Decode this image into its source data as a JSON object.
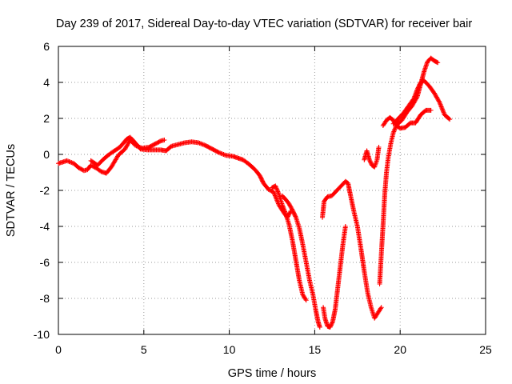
{
  "chart_data": {
    "type": "scatter",
    "title": "Day 239 of 2017, Sidereal Day-to-day VTEC variation (SDTVAR) for receiver bair",
    "xlabel": "GPS time / hours",
    "ylabel": "SDTVAR / TECUs",
    "xlim": [
      0,
      25
    ],
    "ylim": [
      -10,
      6
    ],
    "xticks": [
      "0",
      "5",
      "10",
      "15",
      "20",
      "25"
    ],
    "yticks": [
      "-10",
      "-8",
      "-6",
      "-4",
      "-2",
      "0",
      "2",
      "4",
      "6"
    ],
    "grid": true,
    "legend": "none",
    "marker": "plus",
    "color": "#ff0000",
    "segments": [
      [
        [
          0.0,
          -0.5
        ],
        [
          0.5,
          -0.35
        ],
        [
          0.9,
          -0.5
        ],
        [
          1.2,
          -0.75
        ],
        [
          1.5,
          -0.9
        ],
        [
          1.7,
          -0.85
        ],
        [
          1.9,
          -0.6
        ],
        [
          2.2,
          -0.75
        ],
        [
          2.5,
          -0.95
        ],
        [
          2.8,
          -1.05
        ],
        [
          3.1,
          -0.7
        ],
        [
          3.5,
          -0.05
        ],
        [
          3.9,
          0.3
        ],
        [
          4.2,
          0.8
        ],
        [
          4.5,
          0.5
        ],
        [
          4.9,
          0.35
        ],
        [
          5.3,
          0.4
        ],
        [
          5.7,
          0.6
        ],
        [
          6.0,
          0.75
        ],
        [
          6.2,
          0.8
        ]
      ],
      [
        [
          1.9,
          -0.35
        ],
        [
          2.3,
          -0.6
        ],
        [
          2.6,
          -0.3
        ],
        [
          2.9,
          -0.05
        ],
        [
          3.2,
          0.15
        ],
        [
          3.6,
          0.4
        ],
        [
          4.0,
          0.85
        ],
        [
          4.2,
          0.95
        ],
        [
          4.4,
          0.75
        ],
        [
          4.8,
          0.3
        ],
        [
          5.2,
          0.25
        ],
        [
          5.6,
          0.25
        ],
        [
          6.0,
          0.25
        ],
        [
          6.3,
          0.2
        ],
        [
          6.6,
          0.45
        ],
        [
          7.0,
          0.55
        ],
        [
          7.4,
          0.65
        ],
        [
          7.8,
          0.7
        ],
        [
          8.2,
          0.65
        ],
        [
          8.6,
          0.5
        ],
        [
          9.0,
          0.3
        ],
        [
          9.4,
          0.1
        ],
        [
          9.8,
          -0.05
        ],
        [
          10.2,
          -0.1
        ],
        [
          10.5,
          -0.2
        ],
        [
          10.8,
          -0.3
        ],
        [
          11.1,
          -0.5
        ],
        [
          11.4,
          -0.75
        ],
        [
          11.6,
          -0.95
        ],
        [
          11.8,
          -1.2
        ],
        [
          12.0,
          -1.6
        ],
        [
          12.3,
          -1.95
        ],
        [
          12.6,
          -2.1
        ],
        [
          12.9,
          -2.8
        ],
        [
          13.2,
          -3.25
        ],
        [
          13.4,
          -3.5
        ],
        [
          13.6,
          -3.15
        ]
      ],
      [
        [
          12.5,
          -1.85
        ],
        [
          12.7,
          -1.75
        ],
        [
          12.9,
          -2.2
        ],
        [
          13.1,
          -2.8
        ],
        [
          13.3,
          -3.3
        ],
        [
          13.5,
          -3.9
        ],
        [
          13.7,
          -4.8
        ],
        [
          13.9,
          -5.9
        ],
        [
          14.1,
          -7.0
        ],
        [
          14.3,
          -7.8
        ],
        [
          14.5,
          -8.1
        ]
      ],
      [
        [
          13.1,
          -2.3
        ],
        [
          13.3,
          -2.5
        ],
        [
          13.5,
          -2.75
        ],
        [
          13.7,
          -3.1
        ],
        [
          13.9,
          -3.5
        ],
        [
          14.1,
          -4.1
        ],
        [
          14.3,
          -5.0
        ],
        [
          14.5,
          -6.0
        ],
        [
          14.7,
          -7.0
        ],
        [
          14.9,
          -7.8
        ],
        [
          15.05,
          -8.6
        ],
        [
          15.2,
          -9.3
        ],
        [
          15.3,
          -9.6
        ]
      ],
      [
        [
          15.5,
          -8.5
        ],
        [
          15.6,
          -9.1
        ],
        [
          15.75,
          -9.55
        ],
        [
          15.9,
          -9.6
        ],
        [
          16.05,
          -9.3
        ],
        [
          16.2,
          -8.6
        ],
        [
          16.35,
          -7.4
        ],
        [
          16.5,
          -6.2
        ],
        [
          16.65,
          -5.0
        ],
        [
          16.8,
          -4.0
        ]
      ],
      [
        [
          15.45,
          -3.5
        ],
        [
          15.55,
          -2.6
        ],
        [
          15.75,
          -2.35
        ],
        [
          16.0,
          -2.3
        ],
        [
          16.3,
          -2.0
        ],
        [
          16.6,
          -1.7
        ],
        [
          16.8,
          -1.5
        ],
        [
          16.95,
          -1.6
        ],
        [
          17.1,
          -2.3
        ],
        [
          17.3,
          -3.2
        ],
        [
          17.5,
          -4.0
        ],
        [
          17.7,
          -5.2
        ],
        [
          17.9,
          -6.5
        ],
        [
          18.1,
          -7.7
        ],
        [
          18.3,
          -8.5
        ],
        [
          18.5,
          -9.1
        ],
        [
          18.7,
          -8.8
        ],
        [
          18.9,
          -8.5
        ]
      ],
      [
        [
          17.9,
          -0.3
        ],
        [
          18.05,
          0.2
        ],
        [
          18.2,
          -0.3
        ],
        [
          18.35,
          -0.6
        ],
        [
          18.5,
          -0.7
        ],
        [
          18.65,
          -0.3
        ],
        [
          18.75,
          0.4
        ]
      ],
      [
        [
          18.8,
          -7.2
        ],
        [
          18.9,
          -5.5
        ],
        [
          19.0,
          -3.9
        ],
        [
          19.1,
          -2.2
        ],
        [
          19.2,
          -1.0
        ],
        [
          19.3,
          -0.2
        ],
        [
          19.45,
          0.6
        ],
        [
          19.6,
          1.2
        ],
        [
          19.8,
          1.65
        ],
        [
          20.1,
          1.9
        ],
        [
          20.4,
          2.35
        ],
        [
          20.7,
          2.7
        ],
        [
          21.0,
          3.2
        ],
        [
          21.2,
          3.9
        ],
        [
          21.4,
          4.6
        ],
        [
          21.6,
          5.15
        ],
        [
          21.8,
          5.35
        ],
        [
          22.0,
          5.2
        ],
        [
          22.2,
          5.1
        ]
      ],
      [
        [
          19.0,
          1.6
        ],
        [
          19.2,
          1.9
        ],
        [
          19.4,
          2.05
        ],
        [
          19.6,
          1.9
        ],
        [
          19.8,
          1.6
        ],
        [
          20.0,
          1.45
        ],
        [
          20.3,
          1.5
        ],
        [
          20.6,
          1.75
        ],
        [
          20.9,
          1.75
        ],
        [
          21.2,
          2.2
        ],
        [
          21.5,
          2.45
        ],
        [
          21.8,
          2.45
        ]
      ],
      [
        [
          19.6,
          1.7
        ],
        [
          19.9,
          2.0
        ],
        [
          20.2,
          2.3
        ],
        [
          20.5,
          2.7
        ],
        [
          20.8,
          3.1
        ],
        [
          21.0,
          3.6
        ],
        [
          21.2,
          4.0
        ],
        [
          21.4,
          4.1
        ],
        [
          21.7,
          3.8
        ],
        [
          22.0,
          3.4
        ],
        [
          22.3,
          2.9
        ],
        [
          22.6,
          2.2
        ],
        [
          22.9,
          1.95
        ]
      ]
    ]
  }
}
